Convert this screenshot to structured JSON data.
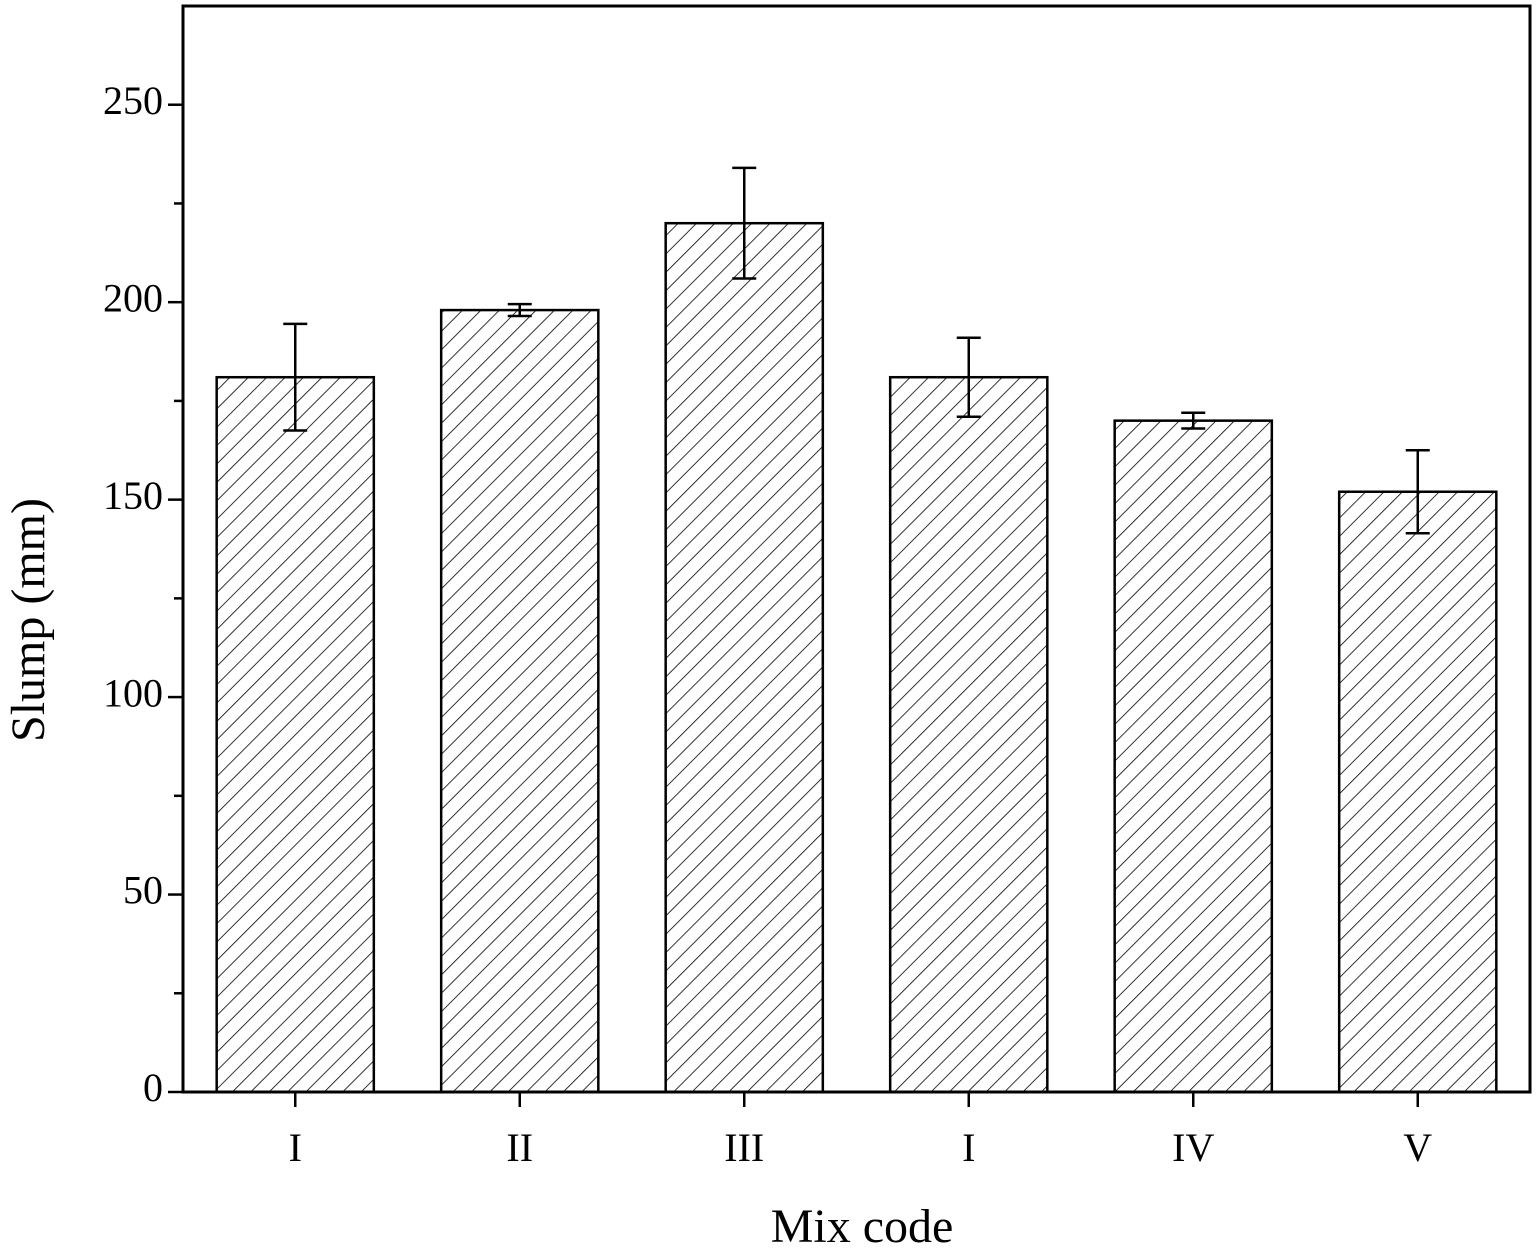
{
  "chart_data": {
    "type": "bar",
    "x_label": "Mix code",
    "y_label": "Slump (mm)",
    "categories": [
      "I",
      "II",
      "III",
      "I",
      "IV",
      "V"
    ],
    "values": [
      181,
      198,
      220,
      181,
      170,
      152
    ],
    "errors": [
      13.5,
      1.5,
      14,
      10,
      2,
      10.5
    ],
    "color": "#ffffff",
    "ylim": [
      0,
      275
    ],
    "yticks": [
      0,
      50,
      100,
      150,
      200,
      250
    ],
    "minor_yticks": [
      25,
      75,
      125,
      175,
      225
    ],
    "grid": false
  }
}
